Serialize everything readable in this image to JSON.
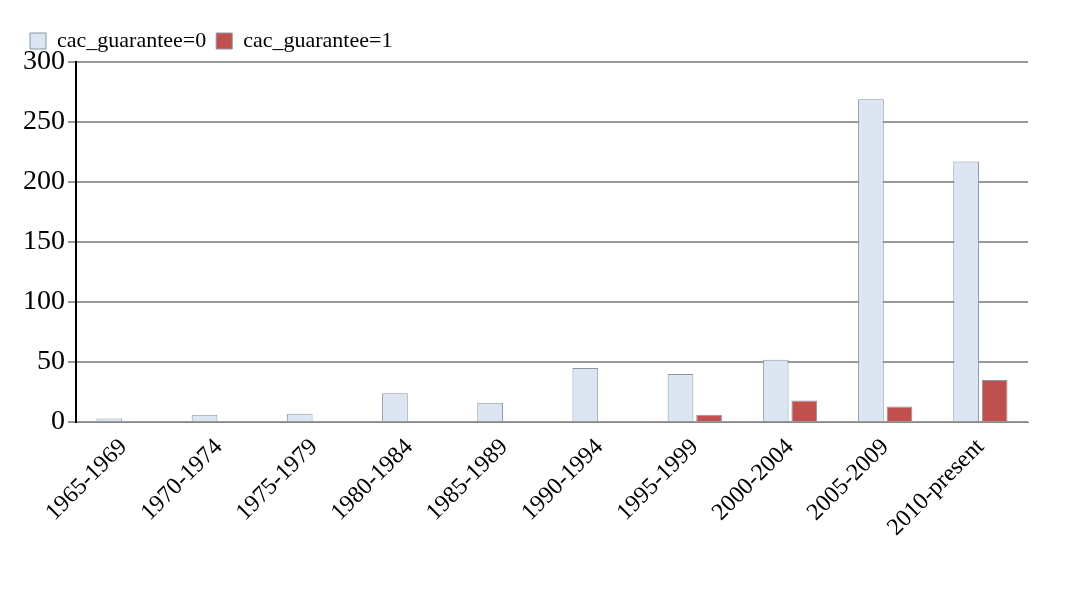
{
  "chart_data": {
    "type": "bar",
    "categories": [
      "1965-1969",
      "1970-1974",
      "1975-1979",
      "1980-1984",
      "1985-1989",
      "1990-1994",
      "1995-1999",
      "2000-2004",
      "2005-2009",
      "2010-present"
    ],
    "series": [
      {
        "name": "cac_guarantee=0",
        "color": "#dce6f2",
        "values": [
          3,
          6,
          7,
          24,
          16,
          45,
          40,
          52,
          269,
          217
        ]
      },
      {
        "name": "cac_guarantee=1",
        "color": "#c0504d",
        "values": [
          0,
          0,
          0,
          0,
          0,
          0,
          6,
          18,
          13,
          35
        ]
      }
    ],
    "ylim": [
      0,
      300
    ],
    "yticks": [
      0,
      50,
      100,
      150,
      200,
      250,
      300
    ],
    "grid": "y",
    "legend": "top left"
  }
}
